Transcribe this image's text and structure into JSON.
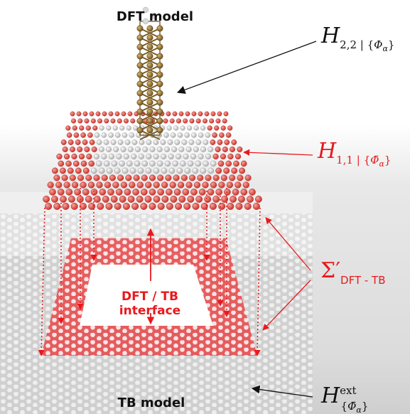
{
  "labels": {
    "dft_model": "DFT model",
    "tb_model": "TB model",
    "interface_line1": "DFT / TB",
    "interface_line2": "interface"
  },
  "equations": {
    "h22": {
      "main": "H",
      "sub": "2,2 | {",
      "phi": "Φ",
      "alpha": "α",
      "close": "}"
    },
    "h11": {
      "main": "H",
      "sub": "1,1 | {",
      "phi": "Φ̄",
      "alpha": "α",
      "close": "}"
    },
    "sigma": {
      "main": "Σ′",
      "sub": "DFT - TB"
    },
    "hext": {
      "main": "H",
      "sup": "ext",
      "sub_open": "{",
      "phi": "Φ̄",
      "alpha": "α",
      "close": "}"
    }
  },
  "colors": {
    "red": "#e8191d",
    "red_atom": "#e35b52",
    "grey_atom": "#c9c9c9",
    "gold_atom": "#8a6a2a",
    "arrow_black": "#111111"
  }
}
